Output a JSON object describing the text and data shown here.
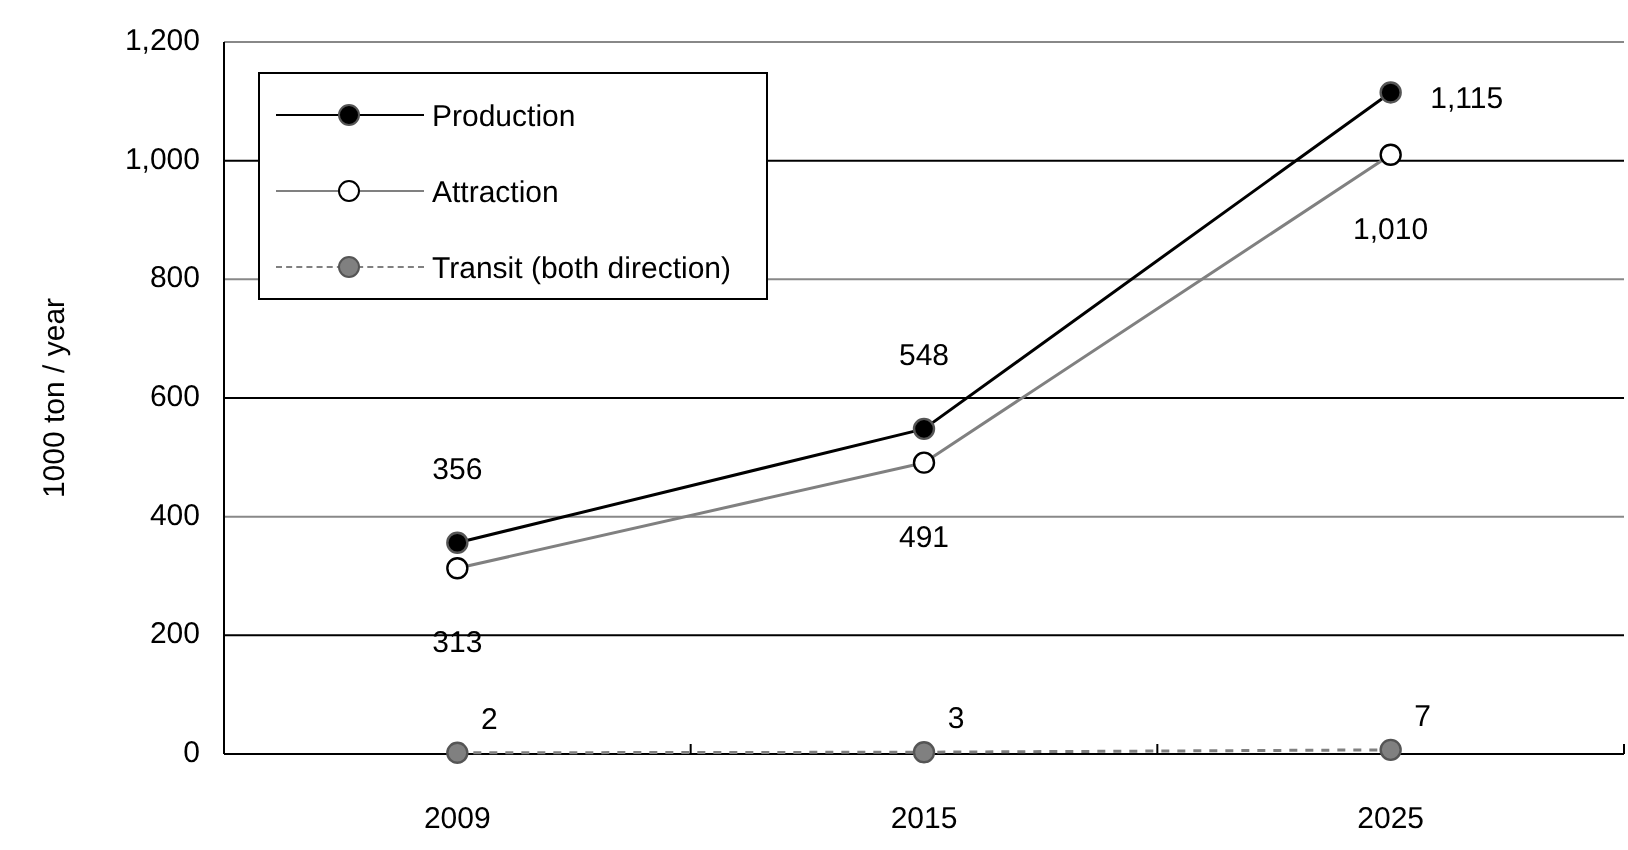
{
  "chart_data": {
    "type": "line",
    "ylabel": "1000 ton / year",
    "categories": [
      "2009",
      "2015",
      "2025"
    ],
    "series": [
      {
        "name": "Production",
        "color": "#000000",
        "values": [
          356,
          548,
          1115
        ],
        "value_labels": [
          "356",
          "548",
          "1,115"
        ]
      },
      {
        "name": "Attraction",
        "color": "#808080",
        "values": [
          313,
          491,
          1010
        ],
        "value_labels": [
          "313",
          "491",
          "1,010"
        ]
      },
      {
        "name": "Transit (both direction)",
        "color": "#808080",
        "values": [
          2,
          3,
          7
        ],
        "value_labels": [
          "2",
          "3",
          "7"
        ],
        "line_style": "dashed"
      }
    ],
    "ylim": [
      0,
      1200
    ],
    "yticks": [
      {
        "value": 0,
        "label": "0"
      },
      {
        "value": 200,
        "label": "200"
      },
      {
        "value": 400,
        "label": "400"
      },
      {
        "value": 600,
        "label": "600"
      },
      {
        "value": 800,
        "label": "800"
      },
      {
        "value": 1000,
        "label": "1,000"
      },
      {
        "value": 1200,
        "label": "1,200"
      }
    ],
    "grid": "y",
    "legend": "top left",
    "marker": "circle"
  }
}
